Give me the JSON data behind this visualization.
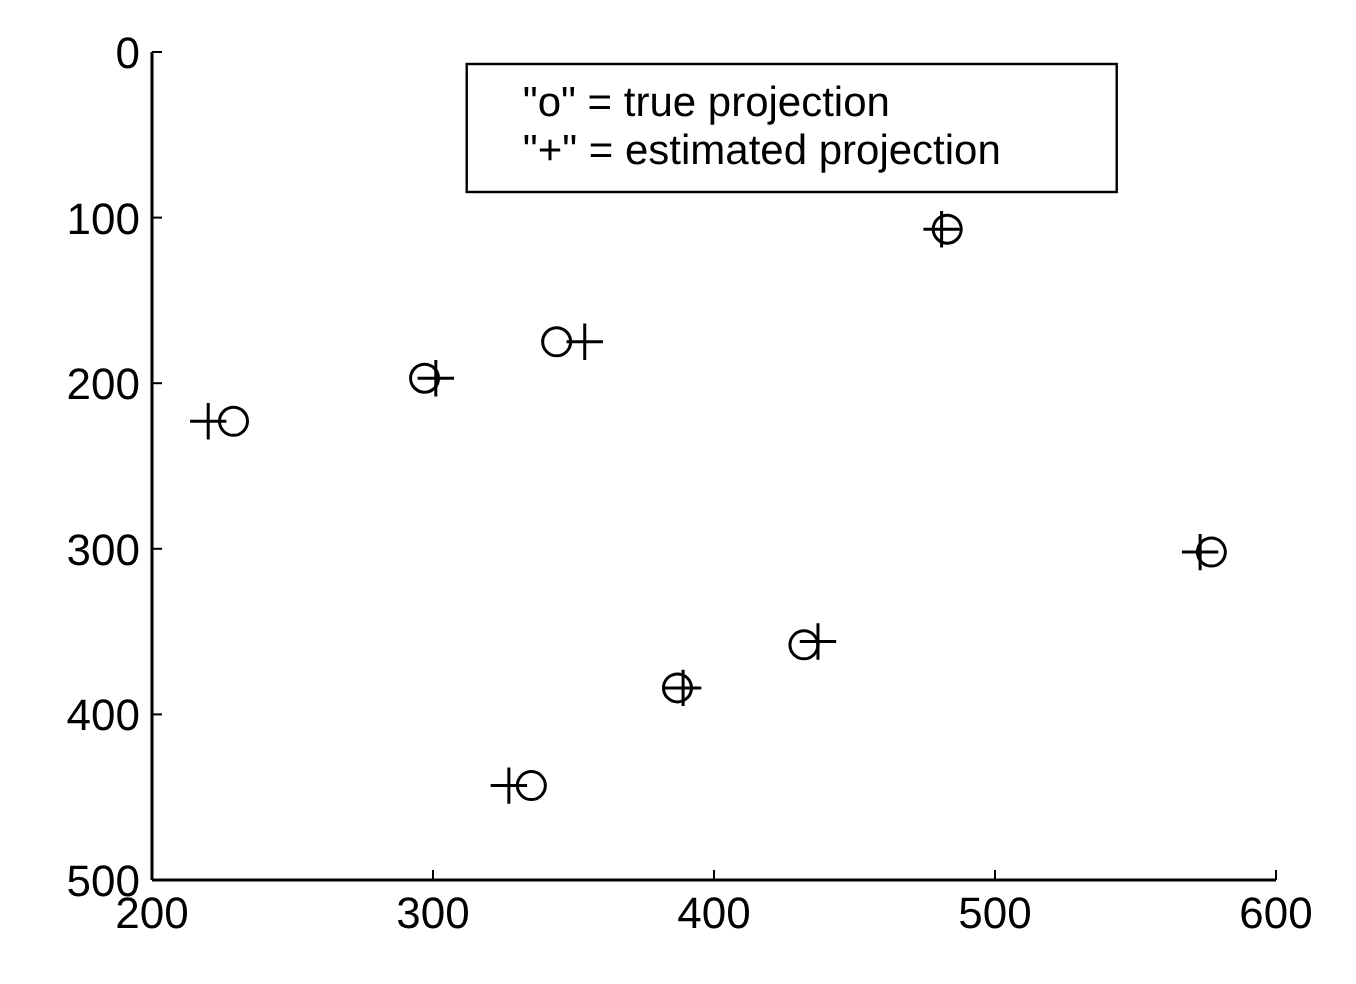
{
  "chart_data": {
    "type": "scatter",
    "xlim": [
      200,
      600
    ],
    "xticks": [
      200,
      300,
      400,
      500,
      600
    ],
    "ylim": [
      500,
      0
    ],
    "yticks": [
      0,
      100,
      200,
      300,
      400,
      500
    ],
    "legend": "top",
    "grid": false,
    "series": [
      {
        "name": "\"o\" = true projection",
        "color": "#000000",
        "marker": "circle",
        "x": [
          229,
          297,
          344,
          483,
          577,
          432,
          387,
          335
        ],
        "values": [
          223,
          197,
          175,
          107,
          302,
          358,
          384,
          443
        ]
      },
      {
        "name": "\"+\" = estimated projection",
        "color": "#000000",
        "marker": "cross",
        "x": [
          220,
          301,
          354,
          481,
          573,
          437,
          389,
          327
        ],
        "values": [
          223,
          197,
          175,
          107,
          302,
          356,
          384,
          443
        ]
      }
    ]
  }
}
